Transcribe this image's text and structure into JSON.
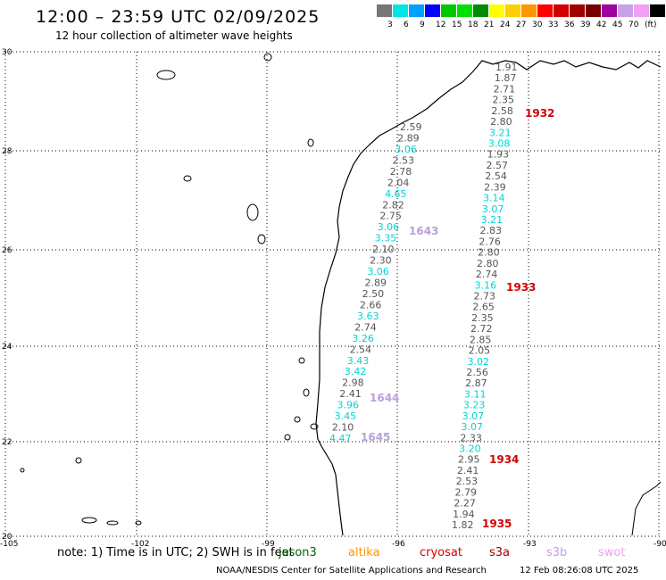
{
  "header": {
    "title": "12:00 – 23:59 UTC 02/09/2025",
    "subtitle": "12 hour collection of altimeter wave heights"
  },
  "legend": {
    "colors": [
      "#777777",
      "#00e5e5",
      "#00a0ff",
      "#0000ff",
      "#00c800",
      "#00e000",
      "#008c00",
      "#ffff00",
      "#ffd000",
      "#ff9600",
      "#ff0000",
      "#d00000",
      "#a00000",
      "#780000",
      "#a000a0",
      "#c8a0e6",
      "#f0a0f0",
      "#000000"
    ],
    "labels": [
      "3",
      "6",
      "9",
      "12",
      "15",
      "18",
      "21",
      "24",
      "27",
      "30",
      "33",
      "36",
      "39",
      "42",
      "45",
      "70",
      "(ft)"
    ]
  },
  "axes": {
    "lon_labels": [
      "-105",
      "-102",
      "-99",
      "-96",
      "-93",
      "-90"
    ],
    "lat_labels": [
      "30",
      "28",
      "26",
      "24",
      "22",
      "20"
    ]
  },
  "tracks": [
    {
      "time": "1643",
      "time_color": "#b8a0dc",
      "values": [
        "2.59",
        "2.89",
        "3.06",
        "2.53",
        "2.78",
        "2.04",
        "4.65",
        "2.82",
        "2.75",
        "3.06",
        "3.35",
        "2.10",
        "2.30",
        "3.06",
        "2.89",
        "2.50",
        "2.66",
        "3.63",
        "2.74",
        "3.26",
        "2.54",
        "3.43",
        "3.42",
        "2.98",
        "2.41",
        "3.96",
        "3.45",
        "2.10",
        "4.47"
      ]
    },
    {
      "time": "1932",
      "time_color": "#d40000",
      "values": [
        "1.91",
        "1.87",
        "2.71",
        "2.35",
        "2.58",
        "2.80",
        "3.21",
        "3.08",
        "1.93",
        "2.57",
        "2.54",
        "2.39",
        "3.14",
        "3.07",
        "3.21",
        "2.83",
        "2.76",
        "2.80",
        "2.80",
        "2.74",
        "3.16",
        "2.73",
        "2.65",
        "2.35",
        "2.72",
        "2.85",
        "2.05",
        "3.02",
        "2.56",
        "2.87",
        "3.11",
        "3.23",
        "3.07",
        "3.07",
        "2.33",
        "3.20",
        "2.95",
        "2.41",
        "2.53",
        "2.79",
        "2.27",
        "1.94",
        "1.82"
      ]
    }
  ],
  "time_labels": [
    {
      "text": "1643",
      "color": "#b8a0dc"
    },
    {
      "text": "1644",
      "color": "#b8a0dc"
    },
    {
      "text": "1645",
      "color": "#b8a0dc"
    },
    {
      "text": "1932",
      "color": "#d40000"
    },
    {
      "text": "1933",
      "color": "#d40000"
    },
    {
      "text": "1934",
      "color": "#d40000"
    },
    {
      "text": "1935",
      "color": "#d40000"
    }
  ],
  "note": "note:  1) Time is in UTC; 2) SWH is in feet",
  "satellites": [
    {
      "name": "jason3",
      "color": "#006400"
    },
    {
      "name": "altika",
      "color": "#ff9600"
    },
    {
      "name": "cryosat",
      "color": "#d40000"
    },
    {
      "name": "s3a",
      "color": "#a00000"
    },
    {
      "name": "s3b",
      "color": "#c8a0e6"
    },
    {
      "name": "swot",
      "color": "#f0a0f0"
    }
  ],
  "footer": {
    "credit": "NOAA/NESDIS Center for Satellite Applications and Research",
    "date": "12 Feb 08:26:08 UTC 2025"
  }
}
